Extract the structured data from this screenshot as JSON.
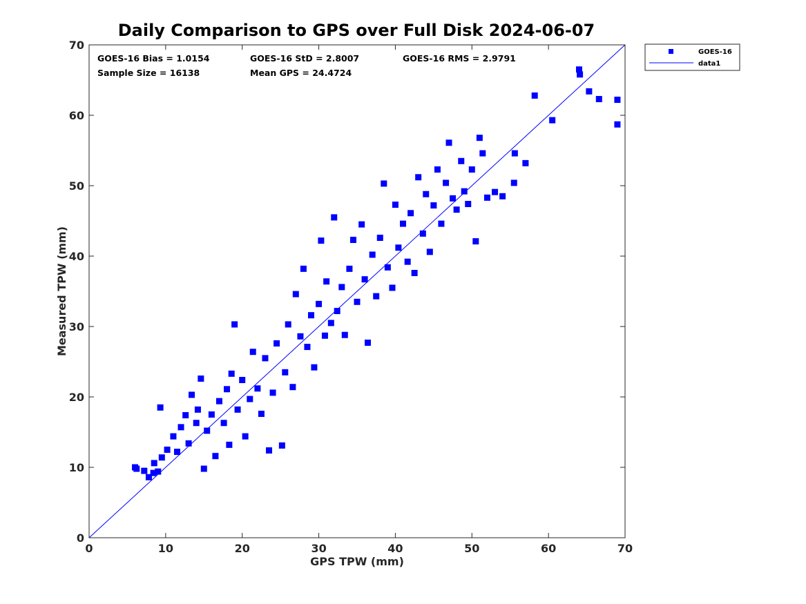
{
  "chart_data": {
    "type": "scatter",
    "title": "Daily Comparison to GPS over Full Disk 2024-06-07",
    "xlabel": "GPS TPW (mm)",
    "ylabel": "Measured TPW (mm)",
    "xlim": [
      0,
      70
    ],
    "ylim": [
      0,
      70
    ],
    "xticks": [
      0,
      10,
      20,
      30,
      40,
      50,
      60,
      70
    ],
    "yticks": [
      0,
      10,
      20,
      30,
      40,
      50,
      60,
      70
    ],
    "xtick_labels": [
      "0",
      "10",
      "20",
      "30",
      "40",
      "50",
      "60",
      "70"
    ],
    "ytick_labels": [
      "0",
      "10",
      "20",
      "30",
      "40",
      "50",
      "60",
      "70"
    ],
    "grid": false,
    "legend_position": "outside top-right",
    "annotations": {
      "bias": "GOES-16 Bias = 1.0154",
      "std": "GOES-16 StD = 2.8007",
      "rms": "GOES-16 RMS = 2.9791",
      "sample_size": "Sample Size = 16138",
      "mean_gps": "Mean GPS = 24.4724"
    },
    "series": [
      {
        "name": "GOES-16",
        "kind": "scatter",
        "marker": "square",
        "color": "#0000ff",
        "points": [
          [
            6,
            10
          ],
          [
            6.2,
            9.8
          ],
          [
            7.2,
            9.5
          ],
          [
            7.8,
            8.6
          ],
          [
            8.4,
            9.2
          ],
          [
            9,
            9.4
          ],
          [
            9.3,
            18.5
          ],
          [
            8.5,
            10.6
          ],
          [
            9.5,
            11.4
          ],
          [
            10.2,
            12.5
          ],
          [
            11,
            14.4
          ],
          [
            11.5,
            12.2
          ],
          [
            12,
            15.7
          ],
          [
            12.6,
            17.4
          ],
          [
            13,
            13.4
          ],
          [
            13.4,
            20.3
          ],
          [
            14,
            16.3
          ],
          [
            14.2,
            18.2
          ],
          [
            14.6,
            22.6
          ],
          [
            15,
            9.8
          ],
          [
            15.4,
            15.2
          ],
          [
            16,
            17.5
          ],
          [
            16.5,
            11.6
          ],
          [
            17,
            19.4
          ],
          [
            17.6,
            16.3
          ],
          [
            18,
            21.1
          ],
          [
            18.3,
            13.2
          ],
          [
            18.6,
            23.3
          ],
          [
            19,
            30.3
          ],
          [
            19.4,
            18.2
          ],
          [
            20,
            22.4
          ],
          [
            20.4,
            14.4
          ],
          [
            21,
            19.7
          ],
          [
            21.4,
            26.4
          ],
          [
            22,
            21.2
          ],
          [
            22.5,
            17.6
          ],
          [
            23,
            25.5
          ],
          [
            23.5,
            12.4
          ],
          [
            24,
            20.6
          ],
          [
            24.5,
            27.6
          ],
          [
            25.2,
            13.1
          ],
          [
            25.6,
            23.5
          ],
          [
            26,
            30.3
          ],
          [
            26.6,
            21.4
          ],
          [
            27,
            34.6
          ],
          [
            27.6,
            28.6
          ],
          [
            28,
            38.2
          ],
          [
            28.5,
            27.1
          ],
          [
            29,
            31.6
          ],
          [
            29.4,
            24.2
          ],
          [
            30,
            33.2
          ],
          [
            30.3,
            42.2
          ],
          [
            30.8,
            28.7
          ],
          [
            31,
            36.4
          ],
          [
            31.6,
            30.5
          ],
          [
            32,
            45.5
          ],
          [
            32.4,
            32.2
          ],
          [
            33,
            35.6
          ],
          [
            33.4,
            28.8
          ],
          [
            34,
            38.2
          ],
          [
            34.5,
            42.3
          ],
          [
            35,
            33.5
          ],
          [
            35.6,
            44.5
          ],
          [
            36,
            36.7
          ],
          [
            36.4,
            27.7
          ],
          [
            37,
            40.2
          ],
          [
            37.5,
            34.3
          ],
          [
            38,
            42.6
          ],
          [
            38.5,
            50.3
          ],
          [
            39,
            38.4
          ],
          [
            39.6,
            35.5
          ],
          [
            40,
            47.3
          ],
          [
            40.4,
            41.2
          ],
          [
            41,
            44.6
          ],
          [
            41.6,
            39.2
          ],
          [
            42,
            46.1
          ],
          [
            42.5,
            37.6
          ],
          [
            43,
            51.2
          ],
          [
            43.6,
            43.2
          ],
          [
            44,
            48.8
          ],
          [
            44.5,
            40.6
          ],
          [
            45,
            47.2
          ],
          [
            45.5,
            52.3
          ],
          [
            46,
            44.6
          ],
          [
            46.6,
            50.4
          ],
          [
            47,
            56.1
          ],
          [
            47.5,
            48.2
          ],
          [
            48,
            46.6
          ],
          [
            48.6,
            53.5
          ],
          [
            49,
            49.2
          ],
          [
            49.5,
            47.4
          ],
          [
            50,
            52.3
          ],
          [
            50.5,
            42.1
          ],
          [
            51,
            56.8
          ],
          [
            51.4,
            54.6
          ],
          [
            52,
            48.3
          ],
          [
            53,
            49.1
          ],
          [
            54,
            48.5
          ],
          [
            55.5,
            50.4
          ],
          [
            55.6,
            54.6
          ],
          [
            57,
            53.2
          ],
          [
            58.2,
            62.8
          ],
          [
            60.5,
            59.3
          ],
          [
            64,
            66.5
          ],
          [
            64.1,
            65.8
          ],
          [
            65.3,
            63.4
          ],
          [
            66.6,
            62.3
          ],
          [
            69,
            62.2
          ],
          [
            69,
            58.7
          ]
        ]
      },
      {
        "name": "data1",
        "kind": "line",
        "color": "#0000ff",
        "x": [
          0,
          70
        ],
        "y": [
          0,
          70
        ]
      }
    ]
  }
}
